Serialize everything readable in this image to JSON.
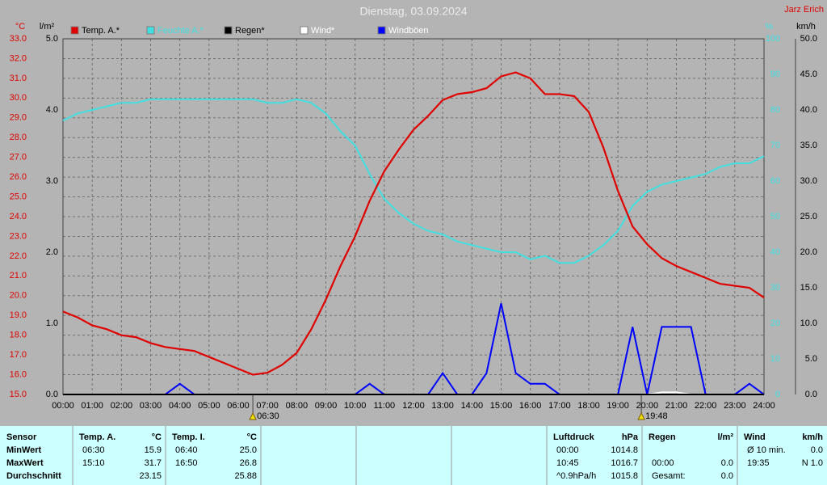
{
  "chart_data": {
    "type": "line",
    "title": "Dienstag, 03.09.2024",
    "author": "Jarz Erich",
    "ylabel": "°C",
    "y2label": "%",
    "y3label": "l/m²",
    "y4label": "km/h",
    "xlim": [
      0,
      24
    ],
    "xticks": [
      {
        "value": 0,
        "label": "00:00"
      },
      {
        "value": 1,
        "label": "01:00"
      },
      {
        "value": 2,
        "label": "02:00"
      },
      {
        "value": 3,
        "label": "03:00"
      },
      {
        "value": 4,
        "label": "04:00"
      },
      {
        "value": 5,
        "label": "05:00"
      },
      {
        "value": 6,
        "label": "06:00"
      },
      {
        "value": 7,
        "label": "07:00"
      },
      {
        "value": 8,
        "label": "08:00"
      },
      {
        "value": 9,
        "label": "09:00"
      },
      {
        "value": 10,
        "label": "10:00"
      },
      {
        "value": 11,
        "label": "11:00"
      },
      {
        "value": 12,
        "label": "12:00"
      },
      {
        "value": 13,
        "label": "13:00"
      },
      {
        "value": 14,
        "label": "14:00"
      },
      {
        "value": 15,
        "label": "15:00"
      },
      {
        "value": 16,
        "label": "16:00"
      },
      {
        "value": 17,
        "label": "17:00"
      },
      {
        "value": 18,
        "label": "18:00"
      },
      {
        "value": 19,
        "label": "19:00"
      },
      {
        "value": 20,
        "label": "20:00"
      },
      {
        "value": 21,
        "label": "21:00"
      },
      {
        "value": 22,
        "label": "22:00"
      },
      {
        "value": 23,
        "label": "23:00"
      },
      {
        "value": 24,
        "label": "24:00"
      }
    ],
    "ylim": [
      15,
      33
    ],
    "yticks": [
      {
        "value": 15,
        "label": "15.0"
      },
      {
        "value": 16,
        "label": "16.0"
      },
      {
        "value": 17,
        "label": "17.0"
      },
      {
        "value": 18,
        "label": "18.0"
      },
      {
        "value": 19,
        "label": "19.0"
      },
      {
        "value": 20,
        "label": "20.0"
      },
      {
        "value": 21,
        "label": "21.0"
      },
      {
        "value": 22,
        "label": "22.0"
      },
      {
        "value": 23,
        "label": "23.0"
      },
      {
        "value": 24,
        "label": "24.0"
      },
      {
        "value": 25,
        "label": "25.0"
      },
      {
        "value": 26,
        "label": "26.0"
      },
      {
        "value": 27,
        "label": "27.0"
      },
      {
        "value": 28,
        "label": "28.0"
      },
      {
        "value": 29,
        "label": "29.0"
      },
      {
        "value": 30,
        "label": "30.0"
      },
      {
        "value": 31,
        "label": "31.0"
      },
      {
        "value": 32,
        "label": "32.0"
      },
      {
        "value": 33,
        "label": "33.0"
      }
    ],
    "y2lim": [
      0,
      100
    ],
    "y2ticks": [
      0,
      10,
      20,
      30,
      40,
      50,
      60,
      70,
      80,
      90,
      100
    ],
    "y3lim": [
      0,
      5
    ],
    "y3ticks": [
      {
        "value": 0,
        "label": "0.0"
      },
      {
        "value": 1,
        "label": "1.0"
      },
      {
        "value": 2,
        "label": "2.0"
      },
      {
        "value": 3,
        "label": "3.0"
      },
      {
        "value": 4,
        "label": "4.0"
      },
      {
        "value": 5,
        "label": "5.0"
      }
    ],
    "y4lim": [
      0,
      50
    ],
    "y4ticks": [
      {
        "value": 0,
        "label": "0.0"
      },
      {
        "value": 5,
        "label": "5.0"
      },
      {
        "value": 10,
        "label": "10.0"
      },
      {
        "value": 15,
        "label": "15.0"
      },
      {
        "value": 20,
        "label": "20.0"
      },
      {
        "value": 25,
        "label": "25.0"
      },
      {
        "value": 30,
        "label": "30.0"
      },
      {
        "value": 35,
        "label": "35.0"
      },
      {
        "value": 40,
        "label": "40.0"
      },
      {
        "value": 45,
        "label": "45.0"
      },
      {
        "value": 50,
        "label": "50.0"
      }
    ],
    "grid": true,
    "x": [
      0,
      0.5,
      1,
      1.5,
      2,
      2.5,
      3,
      3.5,
      4,
      4.5,
      5,
      5.5,
      6,
      6.5,
      7,
      7.5,
      8,
      8.5,
      9,
      9.5,
      10,
      10.5,
      11,
      11.5,
      12,
      12.5,
      13,
      13.5,
      14,
      14.5,
      15,
      15.5,
      16,
      16.5,
      17,
      17.5,
      18,
      18.5,
      19,
      19.5,
      20,
      20.5,
      21,
      21.5,
      22,
      22.5,
      23,
      23.5,
      24
    ],
    "series": [
      {
        "name": "Temp. A.*",
        "color": "#e00000",
        "axis": "y",
        "values": [
          19.2,
          18.9,
          18.5,
          18.3,
          18.0,
          17.9,
          17.6,
          17.4,
          17.3,
          17.2,
          16.9,
          16.6,
          16.3,
          16.0,
          16.1,
          16.5,
          17.1,
          18.3,
          19.8,
          21.5,
          23.0,
          24.8,
          26.3,
          27.4,
          28.4,
          29.1,
          29.9,
          30.2,
          30.3,
          30.5,
          31.1,
          31.3,
          31.0,
          30.2,
          30.2,
          30.1,
          29.3,
          27.5,
          25.3,
          23.5,
          22.6,
          21.9,
          21.5,
          21.2,
          20.9,
          20.6,
          20.5,
          20.4,
          19.9
        ]
      },
      {
        "name": "Feuchte A.*",
        "color": "#40e0e0",
        "axis": "y2",
        "values": [
          77,
          79,
          80,
          81,
          82,
          82,
          83,
          83,
          83,
          83,
          83,
          83,
          83,
          83,
          82,
          82,
          83,
          82,
          79,
          74,
          70,
          62,
          55,
          51,
          48,
          46,
          45,
          43,
          42,
          41,
          40,
          40,
          38,
          39,
          37,
          37,
          39,
          42,
          46,
          53,
          57,
          59,
          60,
          61,
          62,
          64,
          65,
          65,
          67
        ]
      },
      {
        "name": "Regen*",
        "color": "#000000",
        "axis": "y3",
        "values": [
          0,
          0,
          0,
          0,
          0,
          0,
          0,
          0,
          0,
          0,
          0,
          0,
          0,
          0,
          0,
          0,
          0,
          0,
          0,
          0,
          0,
          0,
          0,
          0,
          0,
          0,
          0,
          0,
          0,
          0,
          0,
          0,
          0,
          0,
          0,
          0,
          0,
          0,
          0,
          0,
          0,
          0,
          0,
          0,
          0,
          0,
          0,
          0,
          0
        ]
      },
      {
        "name": "Wind*",
        "color": "#ffffff",
        "axis": "y4",
        "values": [
          0,
          0,
          0,
          0,
          0,
          0,
          0,
          0,
          0,
          0,
          0,
          0,
          0,
          0,
          0,
          0,
          0,
          0,
          0,
          0,
          0,
          0,
          0,
          0,
          0,
          0,
          0,
          0,
          0,
          0,
          0,
          0,
          0,
          0,
          0,
          0,
          0,
          0,
          0,
          0,
          0,
          0.3,
          0.3,
          0,
          0,
          0,
          0,
          0,
          0
        ]
      },
      {
        "name": "Windböen",
        "color": "#0000ff",
        "axis": "y4",
        "values": [
          0,
          0,
          0,
          0,
          0,
          0,
          0,
          0,
          1.5,
          0,
          0,
          0,
          0,
          0,
          0,
          0,
          0,
          0,
          0,
          0,
          0,
          1.5,
          0,
          0,
          0,
          0,
          3.0,
          0,
          0,
          3.0,
          12.8,
          3.0,
          1.5,
          1.5,
          0,
          0,
          0,
          0,
          0,
          9.5,
          0,
          9.5,
          9.5,
          9.5,
          0,
          0,
          0,
          1.5,
          0
        ]
      }
    ],
    "annotations": [
      {
        "x": 6.5,
        "label": "06:30"
      },
      {
        "x": 19.8,
        "label": "19:48"
      }
    ]
  },
  "table": {
    "groups": [
      {
        "header": "Sensor",
        "rows": [
          {
            "value": "MinWert"
          },
          {
            "value": "MaxWert"
          },
          {
            "value": "Durchschnitt"
          }
        ]
      },
      {
        "header": "Temp. A.",
        "unit": "°C",
        "rows": [
          {
            "time": "06:30",
            "value": "15.9"
          },
          {
            "time": "15:10",
            "value": "31.7"
          },
          {
            "value": "23.15"
          }
        ]
      },
      {
        "header": "Temp. I.",
        "unit": "°C",
        "rows": [
          {
            "time": "06:40",
            "value": "25.0"
          },
          {
            "time": "16:50",
            "value": "26.8"
          },
          {
            "value": "25.88"
          }
        ]
      },
      {
        "header": "Luftdruck",
        "unit": "hPa",
        "rows": [
          {
            "time": "00:00",
            "value": "1014.8"
          },
          {
            "time": "10:45",
            "value": "1016.7"
          },
          {
            "time": "^0.9hPa/h",
            "value": "1015.8"
          }
        ]
      },
      {
        "header": "Regen",
        "unit": "l/m²",
        "rows": [
          {},
          {
            "time": "00:00",
            "value": "0.0"
          },
          {
            "time": "Gesamt:",
            "value": "0.0"
          }
        ]
      },
      {
        "header": "Wind",
        "unit": "km/h",
        "rows": [
          {
            "time": "Ø 10 min.",
            "value": "0.0"
          },
          {
            "time": "19:35",
            "value": "N 1.0"
          }
        ]
      }
    ]
  }
}
